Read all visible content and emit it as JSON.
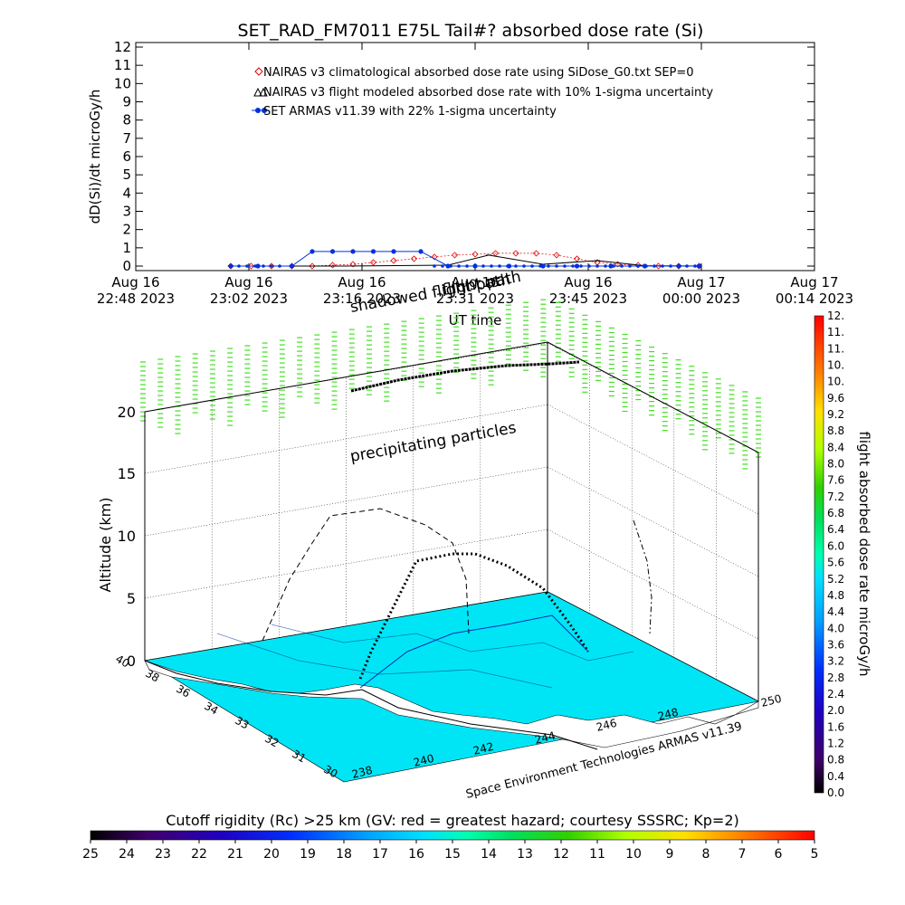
{
  "chart_data": [
    {
      "type": "line",
      "title": "SET_RAD_FM7011  E75L Tail#? absorbed dose rate (Si)",
      "ylabel": "dD(Si)/dt microGy/h",
      "xlabel": "UT time",
      "ylim": [
        0,
        12
      ],
      "yticks": [
        "0",
        "1",
        "2",
        "3",
        "4",
        "5",
        "6",
        "7",
        "8",
        "9",
        "10",
        "11",
        "12"
      ],
      "xticks": [
        {
          "line1": "Aug 16",
          "line2": "22:48 2023"
        },
        {
          "line1": "Aug 16",
          "line2": "23:02 2023"
        },
        {
          "line1": "Aug 16",
          "line2": "23:16 2023"
        },
        {
          "line1": "Aug 16",
          "line2": "23:31 2023"
        },
        {
          "line1": "Aug 16",
          "line2": "23:45 2023"
        },
        {
          "line1": "Aug 17",
          "line2": "00:00 2023"
        },
        {
          "line1": "Aug 17",
          "line2": "00:14 2023"
        }
      ],
      "legend": [
        {
          "label": "NAIRAS v3 climatological absorbed dose rate using SiDose_G0.txt SEP=0",
          "color": "#e00000",
          "marker": "diamond"
        },
        {
          "label": "NAIRAS v3 flight modeled absorbed dose rate with 10% 1-sigma uncertainty",
          "color": "#000000",
          "marker": "triangle"
        },
        {
          "label": "SET ARMAS v11.39 with 22% 1-sigma uncertainty",
          "color": "#0030e0",
          "marker": "dot"
        }
      ],
      "series": [
        {
          "name": "NAIRAS v3 climatological absorbed dose rate using SiDose_G0.txt SEP=0",
          "x": [
            0.14,
            0.17,
            0.2,
            0.23,
            0.26,
            0.29,
            0.32,
            0.35,
            0.38,
            0.41,
            0.44,
            0.47,
            0.5,
            0.53,
            0.56,
            0.59,
            0.62,
            0.65,
            0.68,
            0.71,
            0.74,
            0.77,
            0.8,
            0.83
          ],
          "values": [
            0,
            0,
            0,
            0,
            0,
            0.05,
            0.1,
            0.2,
            0.3,
            0.4,
            0.5,
            0.6,
            0.65,
            0.7,
            0.7,
            0.7,
            0.6,
            0.4,
            0.2,
            0.1,
            0.05,
            0,
            0,
            0
          ]
        },
        {
          "name": "NAIRAS v3 flight modeled absorbed dose rate with 10% 1-sigma uncertainty",
          "x": [
            0.14,
            0.3,
            0.46,
            0.52,
            0.6,
            0.68,
            0.75,
            0.83
          ],
          "values": [
            0,
            0,
            0.05,
            0.6,
            0.1,
            0.3,
            0.02,
            0
          ]
        },
        {
          "name": "SET ARMAS v11.39 with 22% 1-sigma uncertainty",
          "x": [
            0.14,
            0.18,
            0.23,
            0.26,
            0.29,
            0.32,
            0.35,
            0.38,
            0.42,
            0.46,
            0.5,
            0.55,
            0.6,
            0.65,
            0.7,
            0.75,
            0.8,
            0.83
          ],
          "values": [
            0,
            0,
            0,
            0.8,
            0.8,
            0.8,
            0.8,
            0.8,
            0.8,
            0,
            0,
            0,
            0,
            0,
            0,
            0,
            0,
            0
          ]
        }
      ]
    },
    {
      "type": "3d-surface",
      "ylabel": "Altitude (km)",
      "zticks": [
        "0",
        "5",
        "10",
        "15",
        "20"
      ],
      "lat_ticks": [
        "30",
        "31",
        "32",
        "33",
        "34",
        "36",
        "38",
        "40"
      ],
      "lon_ticks": [
        "238",
        "240",
        "242",
        "244",
        "246",
        "248",
        "250"
      ],
      "annotations": [
        "flight path",
        "shadowed flight path",
        "precipitating particles"
      ],
      "credit": "Space Environment Technologies ARMAS v11.39",
      "colorbar": {
        "label": "flight absorbed dose rate microGy/h",
        "ticks": [
          "0.0",
          "0.4",
          "0.8",
          "1.2",
          "1.6",
          "2.0",
          "2.4",
          "2.8",
          "3.2",
          "3.6",
          "4.0",
          "4.4",
          "4.8",
          "5.2",
          "5.6",
          "6.0",
          "6.4",
          "6.8",
          "7.2",
          "7.6",
          "8.0",
          "8.4",
          "8.8",
          "9.2",
          "9.6",
          "10.",
          "10.",
          "11.",
          "11.",
          "12."
        ]
      },
      "bottom_colorbar": {
        "label": "Cutoff rigidity (Rc) >25 km (GV: red = greatest hazard; courtesy SSSRC; Kp=2)",
        "ticks": [
          "25",
          "24",
          "23",
          "22",
          "21",
          "20",
          "19",
          "18",
          "17",
          "16",
          "15",
          "14",
          "13",
          "12",
          "11",
          "10",
          "9",
          "8",
          "7",
          "6",
          "5"
        ]
      }
    }
  ],
  "colors": {
    "surface": "#00e5f5",
    "curtain": "#40e020",
    "armas": "#0030e0",
    "nairas_clim": "#e00000",
    "land": "#ffffff"
  }
}
